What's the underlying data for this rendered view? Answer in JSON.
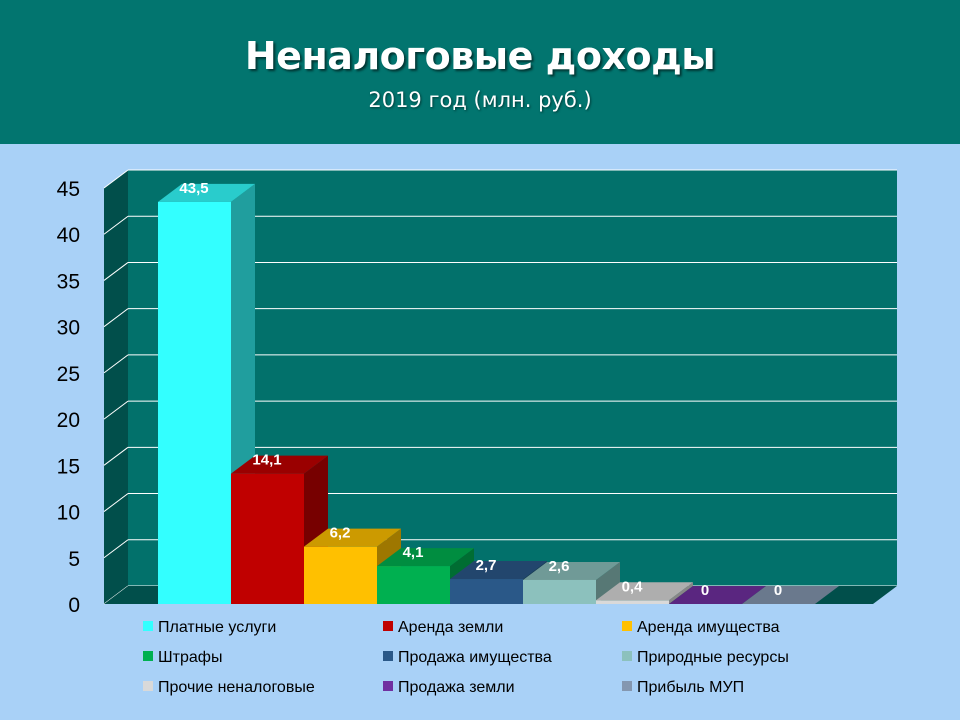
{
  "slide": {
    "title": "Неналоговые доходы",
    "subtitle": "2019 год (млн. руб.)"
  },
  "colors": {
    "header_bg": "#02756f",
    "slide_bg": "#a9d1f7",
    "plot_wall": "#02716b",
    "plot_side": "#014f4b",
    "gridline": "#ffffff"
  },
  "chart_data": {
    "type": "bar",
    "title": "Неналоговые доходы",
    "subtitle": "2019 год (млн. руб.)",
    "ylim": [
      0,
      45
    ],
    "yticks": [
      0,
      5,
      10,
      15,
      20,
      25,
      30,
      35,
      40,
      45
    ],
    "grid": true,
    "three_d": true,
    "legend_position": "bottom",
    "series": [
      {
        "name": "Платные услуги",
        "value": 43.5,
        "label": "43,5",
        "color": "#33ffff"
      },
      {
        "name": "Аренда земли",
        "value": 14.1,
        "label": "14,1",
        "color": "#c00000"
      },
      {
        "name": "Аренда имущества",
        "value": 6.2,
        "label": "6,2",
        "color": "#ffc000"
      },
      {
        "name": "Штрафы",
        "value": 4.1,
        "label": "4,1",
        "color": "#00b050"
      },
      {
        "name": "Продажа имущества",
        "value": 2.7,
        "label": "2,7",
        "color": "#2a5888"
      },
      {
        "name": "Природные ресурсы",
        "value": 2.6,
        "label": "2,6",
        "color": "#8cc1bd"
      },
      {
        "name": "Прочие неналоговые",
        "value": 0.4,
        "label": "0,4",
        "color": "#d9d9d9"
      },
      {
        "name": "Продажа земли",
        "value": 0,
        "label": "0",
        "color": "#7030a0"
      },
      {
        "name": "Прибыль МУП",
        "value": 0,
        "label": "0",
        "color": "#8497b0"
      }
    ]
  }
}
